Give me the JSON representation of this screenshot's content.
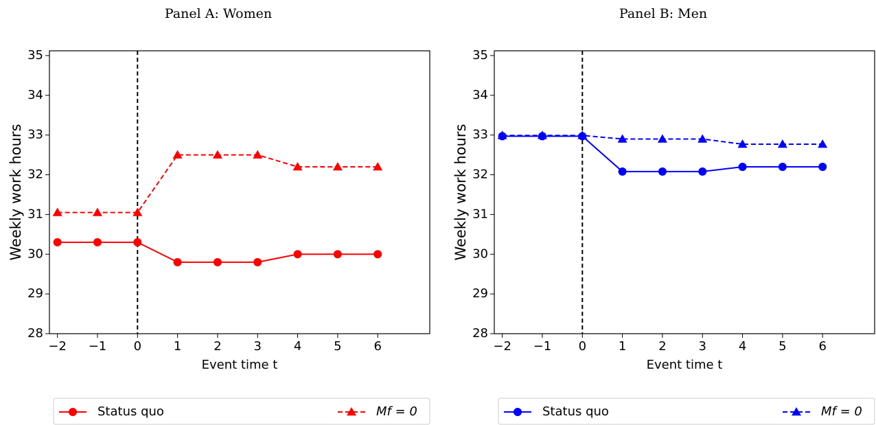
{
  "chart_data": [
    {
      "type": "line",
      "title": "Panel A: Women",
      "xlabel": "Event time t",
      "ylabel": "Weekly work hours",
      "x": [
        -2,
        -1,
        0,
        1,
        2,
        3,
        4,
        5,
        6
      ],
      "series": [
        {
          "name": "Status quo",
          "color": "#ff0000",
          "marker": "circle",
          "dash": false,
          "values": [
            30.3,
            30.3,
            30.3,
            29.8,
            29.8,
            29.8,
            30.0,
            30.0,
            30.0
          ]
        },
        {
          "name": "Mf = 0",
          "color": "#ff0000",
          "marker": "triangle",
          "dash": true,
          "values": [
            31.05,
            31.05,
            31.05,
            32.5,
            32.5,
            32.5,
            32.2,
            32.2,
            32.2
          ]
        }
      ],
      "xlim": [
        -2.2,
        7.3
      ],
      "ylim": [
        28,
        35.12
      ],
      "xticks": [
        {
          "value": -2,
          "label": "−2"
        },
        {
          "value": -1,
          "label": "−1"
        },
        0,
        1,
        2,
        3,
        4,
        5,
        6
      ],
      "yticks": [
        28,
        29,
        30,
        31,
        32,
        33,
        34,
        35
      ],
      "vline": 0,
      "grid": false
    },
    {
      "type": "line",
      "title": "Panel B: Men",
      "xlabel": "Event time t",
      "ylabel": "Weekly work hours",
      "x": [
        -2,
        -1,
        0,
        1,
        2,
        3,
        4,
        5,
        6
      ],
      "series": [
        {
          "name": "Status quo",
          "color": "#0000ff",
          "marker": "circle",
          "dash": false,
          "values": [
            32.97,
            32.97,
            32.97,
            32.08,
            32.08,
            32.08,
            32.2,
            32.2,
            32.2
          ]
        },
        {
          "name": "Mf = 0",
          "color": "#0000ff",
          "marker": "triangle",
          "dash": true,
          "values": [
            32.99,
            32.99,
            32.99,
            32.9,
            32.9,
            32.9,
            32.77,
            32.77,
            32.77
          ]
        }
      ],
      "xlim": [
        -2.2,
        7.3
      ],
      "ylim": [
        28,
        35.12
      ],
      "xticks": [
        {
          "value": -2,
          "label": "−2"
        },
        {
          "value": -1,
          "label": "−1"
        },
        0,
        1,
        2,
        3,
        4,
        5,
        6
      ],
      "yticks": [
        28,
        29,
        30,
        31,
        32,
        33,
        34,
        35
      ],
      "vline": 0,
      "grid": false
    }
  ]
}
